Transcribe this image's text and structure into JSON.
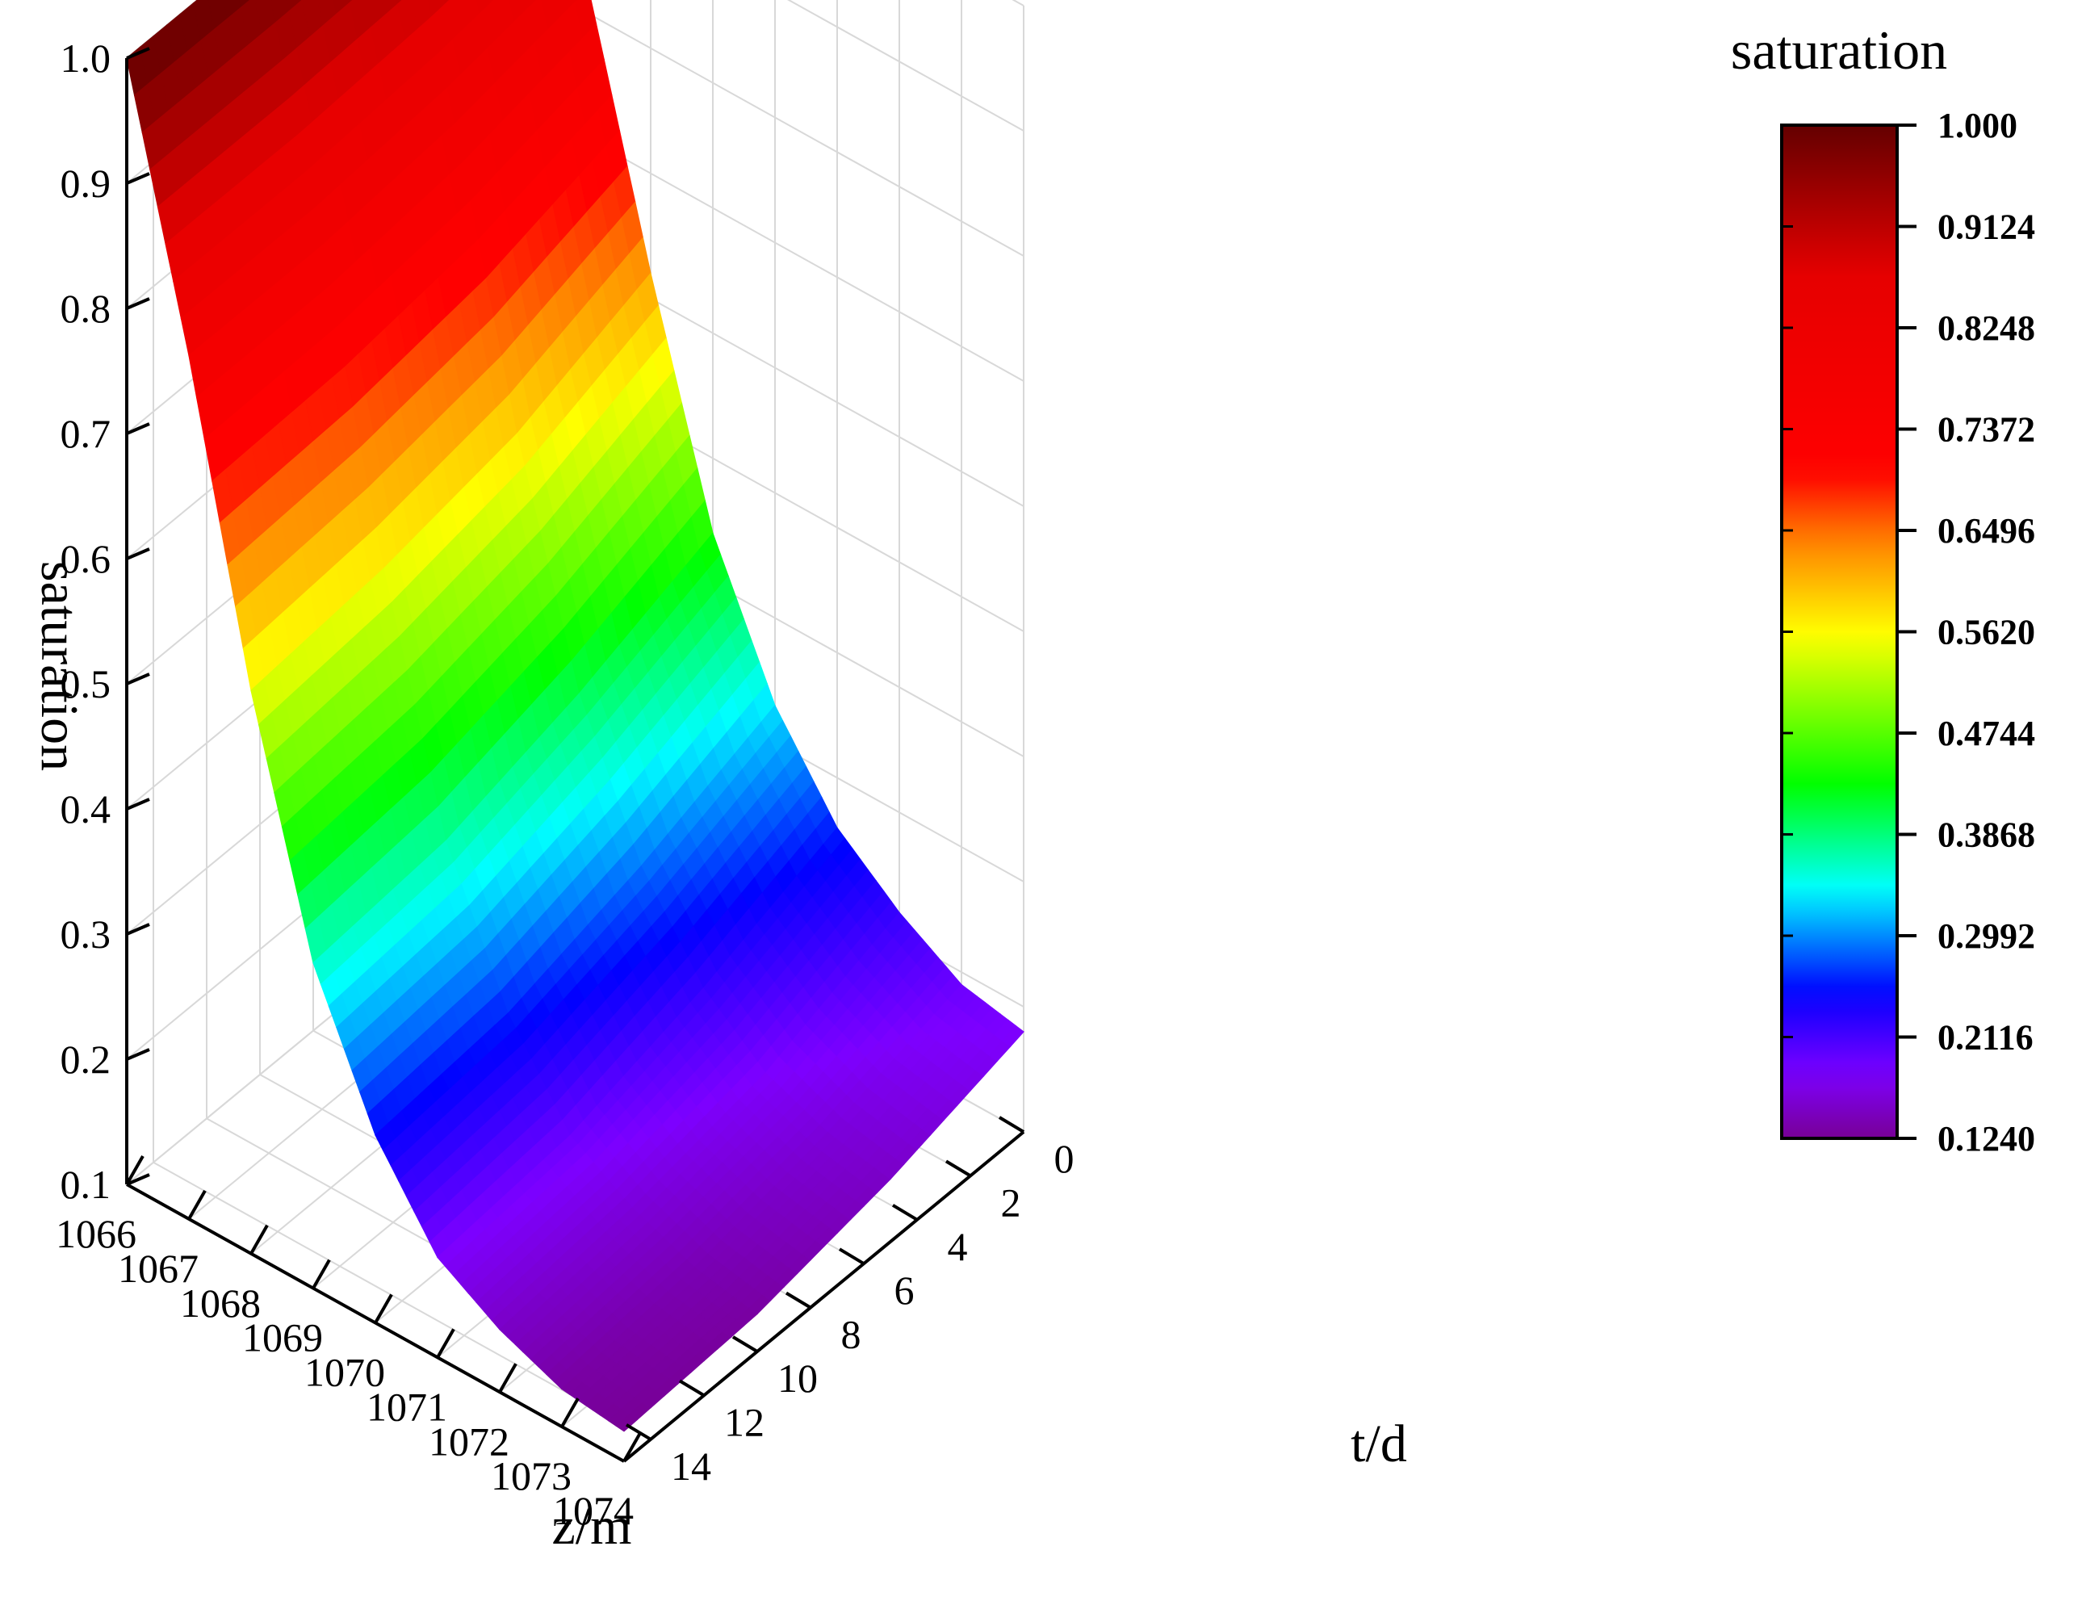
{
  "chart_data": {
    "type": "surface3d",
    "title": "",
    "zlabel": "saturation",
    "xlabel": "z/m",
    "ylabel": "t/d",
    "z_ticks": [
      "0.1",
      "0.2",
      "0.3",
      "0.4",
      "0.5",
      "0.6",
      "0.7",
      "0.8",
      "0.9",
      "1.0"
    ],
    "x_ticks": [
      "1066",
      "1067",
      "1068",
      "1069",
      "1070",
      "1071",
      "1072",
      "1073",
      "1074"
    ],
    "y_ticks": [
      "0",
      "2",
      "4",
      "6",
      "8",
      "10",
      "12",
      "14"
    ],
    "xlim": [
      1066,
      1074
    ],
    "ylim": [
      0,
      15
    ],
    "zlim": [
      0.1,
      1.0
    ],
    "grid": true,
    "surface": {
      "z_m": [
        1066,
        1067,
        1068,
        1069,
        1070,
        1071,
        1072,
        1073,
        1074
      ],
      "t_d": [
        0,
        5,
        10,
        15
      ],
      "saturation": [
        [
          1.0,
          1.0,
          1.0,
          1.0
        ],
        [
          0.82,
          0.8,
          0.79,
          0.79
        ],
        [
          0.62,
          0.58,
          0.56,
          0.55
        ],
        [
          0.44,
          0.4,
          0.37,
          0.36
        ],
        [
          0.33,
          0.29,
          0.26,
          0.25
        ],
        [
          0.26,
          0.22,
          0.19,
          0.18
        ],
        [
          0.22,
          0.18,
          0.16,
          0.15
        ],
        [
          0.19,
          0.16,
          0.14,
          0.13
        ],
        [
          0.18,
          0.15,
          0.13,
          0.124
        ]
      ]
    },
    "colorbar": {
      "title": "saturation",
      "min": 0.124,
      "max": 1.0,
      "labels": [
        "1.000",
        "0.9124",
        "0.8248",
        "0.7372",
        "0.6496",
        "0.5620",
        "0.4744",
        "0.3868",
        "0.2992",
        "0.2116",
        "0.1240"
      ],
      "colormap": "rainbow"
    }
  }
}
